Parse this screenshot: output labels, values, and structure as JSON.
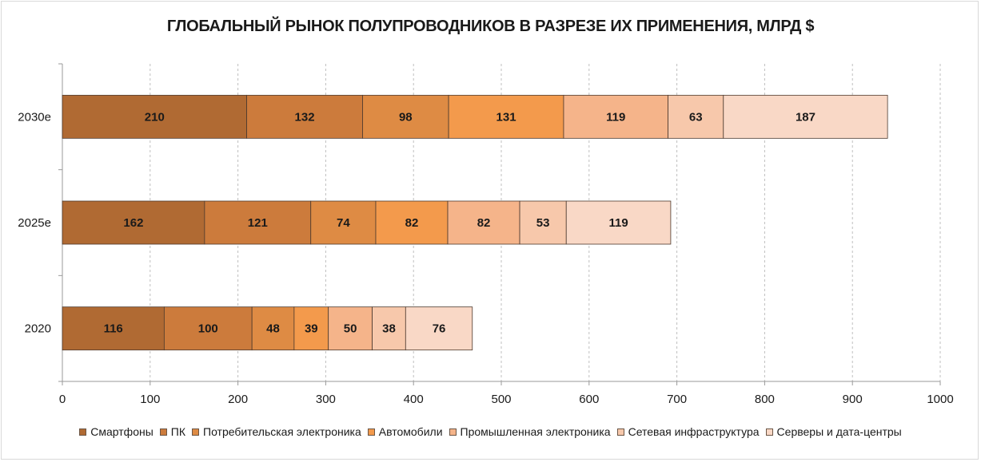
{
  "chart_data": {
    "type": "bar",
    "orientation": "horizontal",
    "stacked": true,
    "title": "ГЛОБАЛЬНЫЙ РЫНОК ПОЛУПРОВОДНИКОВ В РАЗРЕЗЕ ИХ ПРИМЕНЕНИЯ, МЛРД $",
    "categories": [
      "2030e",
      "2025e",
      "2020"
    ],
    "series": [
      {
        "name": "Смартфоны",
        "values": [
          210,
          162,
          116
        ],
        "color": "#b06a33"
      },
      {
        "name": "ПК",
        "values": [
          132,
          121,
          100
        ],
        "color": "#cc7b3c"
      },
      {
        "name": "Потребительская электроника",
        "values": [
          98,
          74,
          48
        ],
        "color": "#de8b44"
      },
      {
        "name": "Автомобили",
        "values": [
          131,
          82,
          39
        ],
        "color": "#f39a4c"
      },
      {
        "name": "Промышленная электроника",
        "values": [
          119,
          82,
          50
        ],
        "color": "#f5b48a"
      },
      {
        "name": "Сетевая инфраструктура",
        "values": [
          63,
          53,
          38
        ],
        "color": "#f7c8ab"
      },
      {
        "name": "Серверы и дата-центры",
        "values": [
          187,
          119,
          76
        ],
        "color": "#f9d8c6"
      }
    ],
    "xlim": [
      0,
      1000
    ],
    "xticks": [
      "0",
      "100",
      "200",
      "300",
      "400",
      "500",
      "600",
      "700",
      "800",
      "900",
      "1000"
    ],
    "grid": "vertical dashed",
    "data_labels": true,
    "legend_position": "bottom"
  }
}
